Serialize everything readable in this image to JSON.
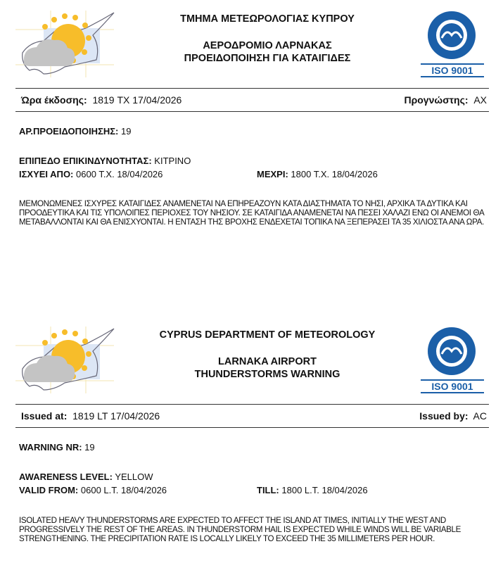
{
  "colors": {
    "accent": "#1b5fa8",
    "sun": "#f7bd2a",
    "cloud": "#bdbdbd"
  },
  "greek": {
    "header": {
      "org": "ΤΜΗΜΑ ΜΕΤΕΩΡΟΛΟΓΙΑΣ ΚΥΠΡΟΥ",
      "line1": "ΑΕΡΟΔΡΟΜΙΟ ΛΑΡΝΑΚΑΣ",
      "line2": "ΠΡΟΕΙΔΟΠΟΙΗΣΗ ΓΙΑ ΚΑΤΑΙΓΙΔΕΣ",
      "iso": "ISO 9001"
    },
    "issued_label": "Ώρα έκδοσης:",
    "issued_value": "1819 TX 17/04/2026",
    "by_label": "Προγνώστης:",
    "by_value": "AX",
    "nr_label": "ΑΡ.ΠΡΟΕΙΔΟΠΟΙΗΣΗΣ:",
    "nr_value": "19",
    "level_label": "ΕΠΙΠΕΔΟ ΕΠΙΚΙΝΔΥΝΟΤΗΤΑΣ:",
    "level_value": "ΚΙΤΡΙΝΟ",
    "from_label": "ΙΣΧΥΕΙ ΑΠΟ:",
    "from_value": "0600 Τ.Χ. 18/04/2026",
    "till_label": "ΜΕΧΡΙ:",
    "till_value": "1800 Τ.Χ. 18/04/2026",
    "text": "ΜΕΜΟΝΩΜΕΝΕΣ ΙΣΧΥΡΕΣ ΚΑΤΑΙΓΙΔΕΣ ΑΝΑΜΕΝΕΤΑΙ ΝΑ ΕΠΗΡΕΑΖΟΥΝ ΚΑΤΑ ΔΙΑΣΤΗΜΑΤΑ ΤΟ ΝΗΣΙ, ΑΡΧΙΚΑ ΤΑ ΔΥΤΙΚΑ ΚΑΙ ΠΡΟΟΔΕΥΤΙΚΑ ΚΑΙ ΤΙΣ ΥΠΟΛΟΙΠΕΣ ΠΕΡΙΟΧΕΣ ΤΟΥ ΝΗΣΙΟΥ. ΣΕ ΚΑΤΑΙΓΙΔΑ ΑΝΑΜΕΝΕΤΑΙ ΝΑ ΠΕΣΕΙ ΧΑΛΑΖΙ ΕΝΩ ΟΙ ΑΝΕΜΟΙ ΘΑ ΜΕΤΑΒΑΛΛΟΝΤΑΙ ΚΑΙ ΘΑ ΕΝΙΣΧΥΟΝΤΑΙ. Η ΕΝΤΑΣΗ ΤΗΣ ΒΡΟΧΗΣ ΕΝΔΕΧΕΤΑΙ ΤΟΠΙΚΑ ΝΑ ΞΕΠΕΡΑΣΕΙ ΤΑ 35 ΧΙΛΙΟΣΤΑ ΑΝΑ ΩΡΑ."
  },
  "english": {
    "header": {
      "org": "CYPRUS DEPARTMENT OF METEOROLOGY",
      "line1": "LARNAKA AIRPORT",
      "line2": "THUNDERSTORMS WARNING",
      "iso": "ISO 9001"
    },
    "issued_label": "Issued at:",
    "issued_value": "1819 LT 17/04/2026",
    "by_label": "Issued by:",
    "by_value": "AC",
    "nr_label": "WARNING NR:",
    "nr_value": "19",
    "level_label": "AWARENESS LEVEL:",
    "level_value": "YELLOW",
    "from_label": "VALID FROM:",
    "from_value": "0600 L.T. 18/04/2026",
    "till_label": "TILL:",
    "till_value": "1800 L.T. 18/04/2026",
    "text": "ISOLATED HEAVY THUNDERSTORMS ARE EXPECTED TO AFFECT THE ISLAND AT TIMES, INITIALLY THE WEST AND PROGRESSIVELY THE REST OF THE AREAS. IN THUNDERSTORM HAIL IS EXPECTED WHILE WINDS WILL BE VARIABLE STRENGTHENING. THE PRECIPITATION RATE IS LOCALLY LIKELY TO EXCEED THE 35 MILLIMETERS PER HOUR."
  }
}
